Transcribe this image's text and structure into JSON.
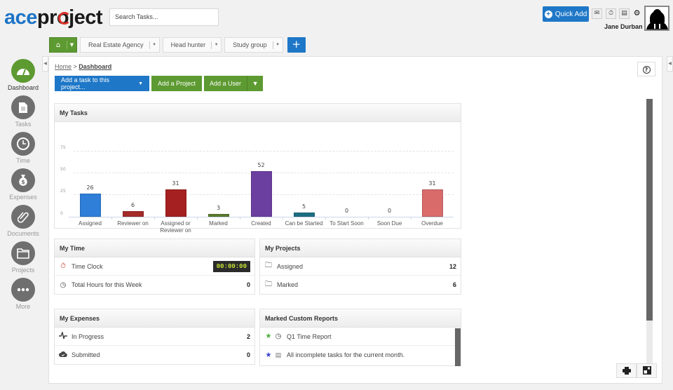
{
  "app": {
    "logo_ace": "ace",
    "logo_pr": "pr",
    "logo_o": "o",
    "logo_ject": "ject"
  },
  "header": {
    "search_placeholder": "Search Tasks...",
    "quick_add_label": "Quick Add",
    "icons": [
      "mail-icon",
      "stopwatch-icon",
      "notes-icon",
      "gear-icon"
    ],
    "user_name": "Jane Durban"
  },
  "project_bar": {
    "projects": [
      {
        "label": "Real Estate Agency"
      },
      {
        "label": "Head hunter"
      },
      {
        "label": "Study group"
      }
    ],
    "add_label": "+"
  },
  "sidebar": {
    "items": [
      {
        "label": "Dashboard",
        "icon": "dashboard-icon",
        "active": true
      },
      {
        "label": "Tasks",
        "icon": "tasks-icon"
      },
      {
        "label": "Time",
        "icon": "clock-icon"
      },
      {
        "label": "Expenses",
        "icon": "money-bag-icon"
      },
      {
        "label": "Documents",
        "icon": "paperclip-icon"
      },
      {
        "label": "Projects",
        "icon": "folder-icon"
      },
      {
        "label": "More",
        "icon": "more-icon"
      }
    ]
  },
  "breadcrumb": {
    "home": "Home",
    "separator": " > ",
    "current": "Dashboard"
  },
  "actions": {
    "add_task": "Add a task to this project...",
    "add_project": "Add a Project",
    "add_user": "Add a User"
  },
  "my_tasks": {
    "title": "My Tasks"
  },
  "chart_data": {
    "type": "bar",
    "title": "My Tasks",
    "categories": [
      "Assigned",
      "Reviewer on",
      "Assigned or Reviewer on",
      "Marked",
      "Created",
      "Can be Started",
      "To Start Soon",
      "Soon Due",
      "Overdue"
    ],
    "values": [
      26,
      6,
      31,
      3,
      52,
      5,
      0,
      0,
      31
    ],
    "colors": [
      "#2f7ed8",
      "#a52a2a",
      "#a52020",
      "#5b7d2e",
      "#6b3fa0",
      "#1d6e82",
      "#999999",
      "#999999",
      "#d96b6b"
    ],
    "yticks": [
      0,
      25,
      50,
      75
    ],
    "ylim": [
      0,
      75
    ],
    "xlabel": "",
    "ylabel": "",
    "grid": true,
    "legend": false
  },
  "my_time": {
    "title": "My Time",
    "rows": [
      {
        "label": "Time Clock",
        "value": "00:00:00",
        "icon": "stopwatch-icon"
      },
      {
        "label": "Total Hours for this Week",
        "value": "0",
        "icon": "clock-icon"
      }
    ]
  },
  "my_projects": {
    "title": "My Projects",
    "rows": [
      {
        "label": "Assigned",
        "value": "12",
        "icon": "folder-check-icon"
      },
      {
        "label": "Marked",
        "value": "6",
        "icon": "folder-star-icon"
      }
    ]
  },
  "my_expenses": {
    "title": "My Expenses",
    "rows": [
      {
        "label": "In Progress",
        "value": "2",
        "icon": "pulse-icon"
      },
      {
        "label": "Submitted",
        "value": "0",
        "icon": "cloud-check-icon"
      }
    ]
  },
  "custom_reports": {
    "title": "Marked Custom Reports",
    "rows": [
      {
        "label": "Q1 Time Report",
        "star_color": "#4caf3a"
      },
      {
        "label": "All incomplete tasks for the current month.",
        "star_color": "#3a3fcf"
      }
    ]
  },
  "colors": {
    "brand_blue": "#1e77c7",
    "brand_green": "#5d9a31",
    "clock_text": "#c6e033"
  }
}
